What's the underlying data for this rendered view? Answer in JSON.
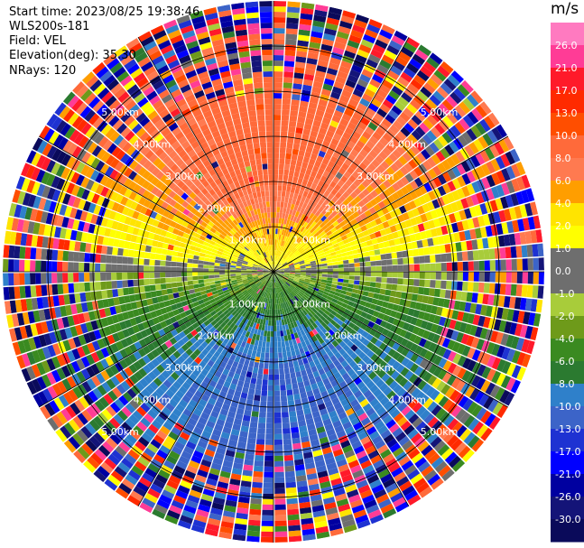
{
  "header": {
    "start_time": "Start time: 2023/08/25 19:38:46",
    "instrument": "WLS200s-181",
    "field": "Field: VEL",
    "elevation": "Elevation(deg): 35.30",
    "nrays": "NRays: 120"
  },
  "chart_data": {
    "type": "heatmap",
    "projection": "polar-ppi",
    "field": "VEL",
    "units": "m/s",
    "n_rays": 120,
    "range_rings_km": [
      1,
      2,
      3,
      4,
      5
    ],
    "range_labels": [
      "1.00km",
      "2.00km",
      "3.00km",
      "4.00km",
      "5.00km"
    ],
    "max_range_km": 6.0,
    "colorbar": {
      "title": "m/s",
      "levels": [
        -30,
        -26,
        -21,
        -17,
        -13,
        -10,
        -8,
        -6,
        -4,
        -2,
        -1,
        0,
        1,
        2,
        4,
        6,
        8,
        10,
        13,
        17,
        21,
        26,
        30
      ],
      "tick_labels": [
        "26.0",
        "21.0",
        "17.0",
        "13.0",
        "10.0",
        "8.0",
        "6.0",
        "4.0",
        "2.0",
        "1.0",
        "0.0",
        "-1.0",
        "-2.0",
        "-4.0",
        "-6.0",
        "-8.0",
        "-10.0",
        "-13.0",
        "-17.0",
        "-21.0",
        "-26.0",
        "-30.0"
      ],
      "colors": [
        "#0a0a5a",
        "#141478",
        "#0000a0",
        "#0000ff",
        "#1e32d2",
        "#3c64c8",
        "#2f80ca",
        "#2b7a30",
        "#3a8a20",
        "#6e9a1a",
        "#a8cc3a",
        "#6e6e6e",
        "#6e6e6e",
        "#ffff00",
        "#ffe400",
        "#ff9e00",
        "#ff7a50",
        "#ff6a3a",
        "#ff4e00",
        "#ff2a00",
        "#ff1a2a",
        "#ff3c96",
        "#ff7ac0"
      ]
    },
    "velocity_structure": {
      "north_sector_peak_ms": 12,
      "south_sector_peak_ms": -9,
      "noise_beyond_km": 3.8
    }
  }
}
